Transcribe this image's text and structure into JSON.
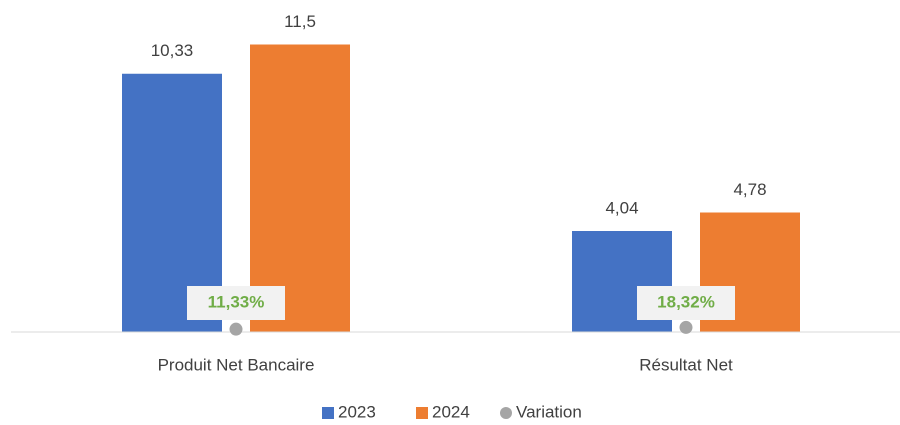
{
  "chart_data": {
    "type": "bar",
    "categories": [
      "Produit Net Bancaire",
      "Résultat Net"
    ],
    "series": [
      {
        "name": "2023",
        "color": "#4472c4",
        "values": [
          10.33,
          4.04
        ],
        "value_labels": [
          "10,33",
          "4,04"
        ]
      },
      {
        "name": "2024",
        "color": "#ed7d31",
        "values": [
          11.5,
          4.78
        ],
        "value_labels": [
          "11,5",
          "4,78"
        ]
      },
      {
        "name": "Variation",
        "type": "scatter",
        "color": "#a5a5a5",
        "label_color": "#70ad47",
        "values": [
          0.1133,
          0.1832
        ],
        "value_labels": [
          "11,33%",
          "18,32%"
        ]
      }
    ],
    "ylim": [
      0,
      12
    ]
  }
}
